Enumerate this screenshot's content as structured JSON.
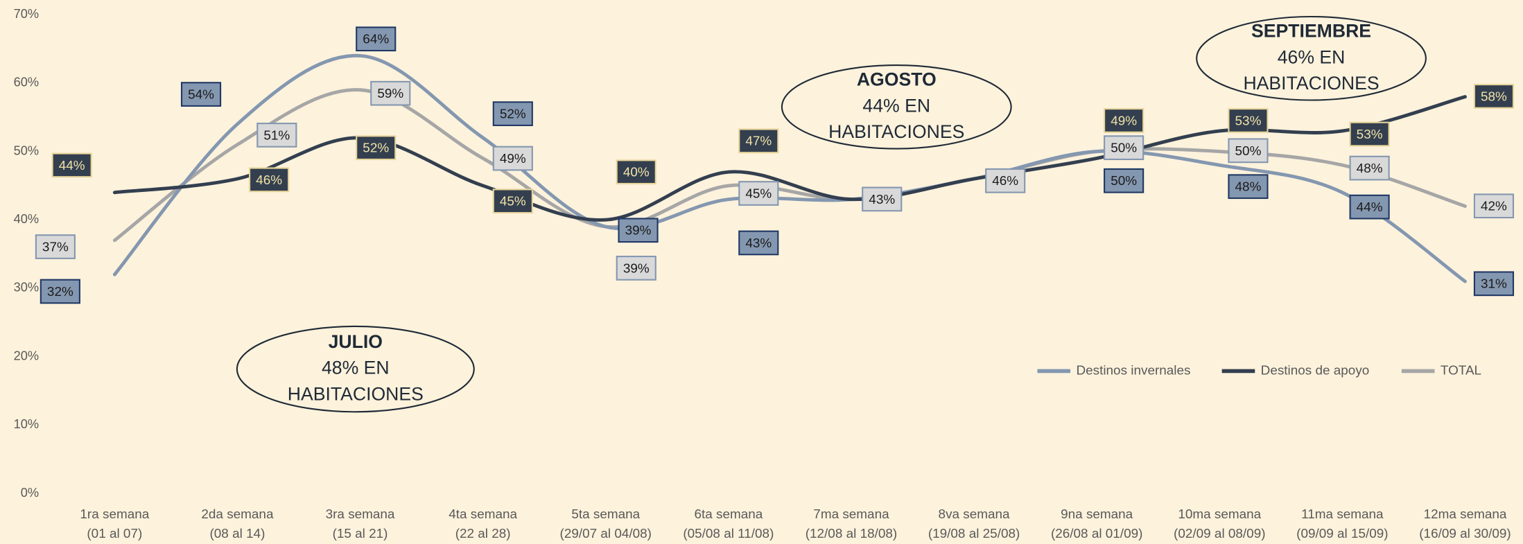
{
  "chart_data": {
    "type": "line",
    "categories": [
      [
        "1ra semana",
        "(01 al 07)"
      ],
      [
        "2da semana",
        "(08 al 14)"
      ],
      [
        "3ra semana",
        "(15 al 21)"
      ],
      [
        "4ta semana",
        "(22 al 28)"
      ],
      [
        "5ta semana",
        "(29/07 al 04/08)"
      ],
      [
        "6ta semana",
        "(05/08 al 11/08)"
      ],
      [
        "7ma semana",
        "(12/08 al 18/08)"
      ],
      [
        "8va semana",
        "(19/08 al 25/08)"
      ],
      [
        "9na semana",
        "(26/08 al 01/09)"
      ],
      [
        "10ma semana",
        "(02/09 al 08/09)"
      ],
      [
        "11ma semana",
        "(09/09 al 15/09)"
      ],
      [
        "12ma semana",
        "(16/09 al 30/09)"
      ]
    ],
    "series": [
      {
        "name": "Destinos invernales",
        "color": "#8497b0",
        "values": [
          32,
          54,
          64,
          52,
          39,
          43,
          43,
          46,
          50,
          48,
          44,
          31
        ],
        "value_labels": [
          "32%",
          "54%",
          "64%",
          "52%",
          "39%",
          "43%",
          null,
          null,
          "50%",
          "48%",
          "44%",
          "31%"
        ]
      },
      {
        "name": "Destinos de apoyo",
        "color": "#333f4f",
        "values": [
          44,
          46,
          52,
          45,
          40,
          47,
          43,
          46,
          49,
          53,
          53,
          58
        ],
        "value_labels": [
          "44%",
          "46%",
          "52%",
          "45%",
          "40%",
          "47%",
          null,
          null,
          "49%",
          "53%",
          "53%",
          "58%"
        ]
      },
      {
        "name": "TOTAL",
        "color": "#a6a6a6",
        "values": [
          37,
          51,
          59,
          49,
          39,
          45,
          43,
          46,
          50,
          50,
          48,
          42
        ],
        "value_labels": [
          "37%",
          "51%",
          "59%",
          "49%",
          "39%",
          "45%",
          "43%",
          "46%",
          "50%",
          "50%",
          "48%",
          "42%"
        ]
      }
    ],
    "ylim": [
      0,
      70
    ],
    "yticks": [
      {
        "value": 0,
        "label": "0%"
      },
      {
        "value": 10,
        "label": "10%"
      },
      {
        "value": 20,
        "label": "20%"
      },
      {
        "value": 30,
        "label": "30%"
      },
      {
        "value": 40,
        "label": "40%"
      },
      {
        "value": 50,
        "label": "50%"
      },
      {
        "value": 60,
        "label": "60%"
      },
      {
        "value": 70,
        "label": "70%"
      }
    ],
    "grid": false,
    "legend": "right",
    "annotations": [
      {
        "title": "JULIO",
        "lines": [
          "48% EN",
          "HABITACIONES"
        ]
      },
      {
        "title": "AGOSTO",
        "lines": [
          "44% EN",
          "HABITACIONES"
        ]
      },
      {
        "title": "SEPTIEMBRE",
        "lines": [
          "46% EN",
          "HABITACIONES"
        ]
      }
    ]
  }
}
